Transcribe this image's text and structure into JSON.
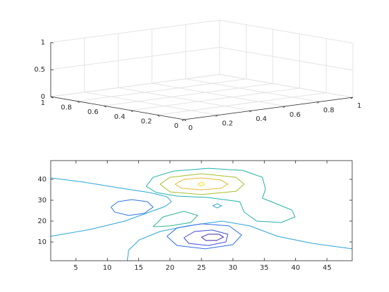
{
  "chart_data": [
    {
      "type": "3d-axes",
      "xlim": [
        0,
        1
      ],
      "ylim": [
        0,
        1
      ],
      "zlim": [
        0,
        1
      ],
      "xticks": [
        0,
        0.2,
        0.4,
        0.6,
        0.8,
        1
      ],
      "yticks": [
        0,
        0.2,
        0.4,
        0.6,
        0.8,
        1
      ],
      "zticks": [
        0,
        0.5,
        1
      ],
      "grid": true
    },
    {
      "type": "contour",
      "xlim": [
        1,
        49
      ],
      "ylim": [
        1,
        49
      ],
      "xticks": [
        5,
        10,
        15,
        20,
        25,
        30,
        35,
        40,
        45
      ],
      "yticks": [
        10,
        20,
        30,
        40
      ],
      "lines": [
        {
          "color": "#27a4d6",
          "x": [
            1.0,
            6.2,
            11.7,
            16.7,
            19.5,
            20.2,
            19.2,
            16.7,
            12.8,
            7.3,
            1.0
          ],
          "y": [
            40.7,
            38.7,
            36.0,
            33.7,
            31.7,
            29.3,
            27.0,
            24.3,
            20.0,
            16.0,
            12.7
          ]
        },
        {
          "color": "#27a4d6",
          "x": [
            13.2,
            13.4,
            15.1,
            18.4,
            22.8,
            28.3,
            32.7,
            37.1,
            42.7,
            49
          ],
          "y": [
            1,
            6,
            11,
            15,
            17.7,
            20,
            17.7,
            12.7,
            9.3,
            6.7
          ]
        },
        {
          "color": "#2b74e0",
          "x": [
            10.6,
            11.7,
            13.9,
            16.4,
            17.3,
            15.9,
            13.4,
            11.2,
            10.6
          ],
          "y": [
            26.7,
            29.3,
            30.3,
            29.3,
            26.7,
            23.7,
            22.7,
            24.3,
            26.7
          ]
        },
        {
          "color": "#2f6ee6",
          "x": [
            19.5,
            21.1,
            25.0,
            29.4,
            31.4,
            30.0,
            25.6,
            21.1,
            19.5
          ],
          "y": [
            12.7,
            16.7,
            18.7,
            17.7,
            13.3,
            8.7,
            6.7,
            8.3,
            12.7
          ]
        },
        {
          "color": "#3a4ad8",
          "x": [
            22.2,
            23.9,
            26.7,
            29.2,
            28.9,
            26.1,
            23.0,
            22.2
          ],
          "y": [
            12,
            15,
            15.7,
            13.7,
            10,
            8.3,
            9.3,
            12
          ]
        },
        {
          "color": "#3d26a8",
          "x": [
            25.0,
            26.1,
            27.8,
            28.5,
            27.4,
            25.7,
            25.0
          ],
          "y": [
            12.3,
            13.7,
            13.7,
            12.3,
            10.7,
            10.7,
            12.3
          ]
        },
        {
          "color": "#2db58f",
          "x": [
            17.3,
            18.9,
            22.2,
            24.4,
            23.3,
            20.0,
            17.3
          ],
          "y": [
            17.3,
            22,
            24.7,
            22.7,
            19.3,
            17.7,
            17.3
          ]
        },
        {
          "color": "#1fb0a8",
          "x": [
            16.2,
            17.3,
            20.6,
            26.1,
            31.6,
            34.7,
            35.2,
            34.7,
            36.6,
            39.4,
            39.9,
            37.7,
            33.8,
            31.8,
            31.1,
            26.1,
            21.1,
            17.8,
            16.2
          ],
          "y": [
            36.7,
            41,
            44,
            45.3,
            44.3,
            41,
            35.3,
            31,
            28.7,
            25.3,
            22,
            19.3,
            20,
            24.3,
            29.3,
            31.3,
            32,
            33.7,
            36.7
          ]
        },
        {
          "color": "#a5be2a",
          "x": [
            18.4,
            20.0,
            25.0,
            30.5,
            31.8,
            30.5,
            25.0,
            20.0,
            18.4
          ],
          "y": [
            37.7,
            41,
            42.7,
            41,
            37.7,
            34.3,
            32.7,
            34,
            37.7
          ]
        },
        {
          "color": "#e3b92c",
          "x": [
            20.8,
            22.2,
            25.0,
            28.1,
            29.2,
            28.1,
            25.0,
            21.9,
            20.8
          ],
          "y": [
            37.7,
            40,
            40.7,
            39.7,
            37.7,
            35.7,
            35,
            35.7,
            37.7
          ]
        },
        {
          "color": "#f9e020",
          "x": [
            24.4,
            25,
            25.5,
            25,
            24.4
          ],
          "y": [
            37.7,
            38.7,
            37.7,
            36.7,
            37.7
          ]
        },
        {
          "color": "#27a4d6",
          "x": [
            26.8,
            27.5,
            28.2,
            27.5,
            26.8
          ],
          "y": [
            27.3,
            28.3,
            27.3,
            26.3,
            27.3
          ]
        }
      ]
    }
  ]
}
